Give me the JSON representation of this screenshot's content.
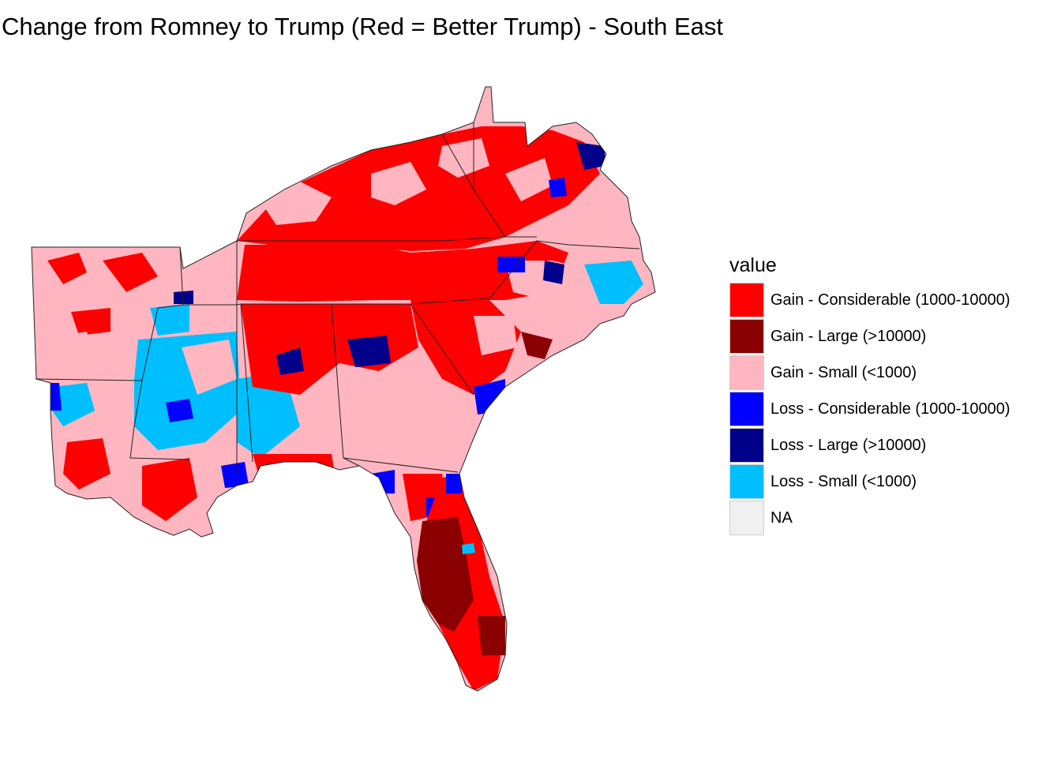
{
  "title": "Change from Romney to Trump (Red = Better Trump) - South East",
  "legend": {
    "title": "value",
    "items": [
      {
        "label": "Gain - Considerable (1000-10000)",
        "color": "#ff0000"
      },
      {
        "label": "Gain - Large (>10000)",
        "color": "#8b0000"
      },
      {
        "label": "Gain - Small (<1000)",
        "color": "#ffb6c1"
      },
      {
        "label": "Loss - Considerable (1000-10000)",
        "color": "#0000ff"
      },
      {
        "label": "Loss - Large (>10000)",
        "color": "#00008b"
      },
      {
        "label": "Loss - Small (<1000)",
        "color": "#00bfff"
      },
      {
        "label": "NA",
        "color": "#f0f0f0"
      }
    ]
  },
  "map": {
    "region": "South East",
    "states": [
      "Arkansas",
      "Louisiana",
      "Mississippi",
      "Tennessee",
      "Kentucky",
      "Alabama",
      "Georgia",
      "Florida",
      "South Carolina",
      "North Carolina",
      "Virginia",
      "West Virginia"
    ]
  }
}
